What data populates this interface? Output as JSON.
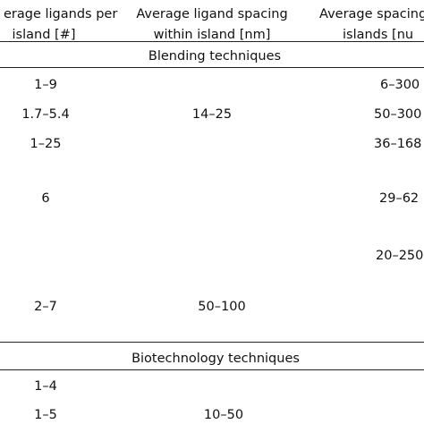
{
  "header": {
    "col1": [
      "erage ligands per",
      "island [#]"
    ],
    "col2": [
      "Average ligand spacing",
      "within island [nm]"
    ],
    "col3": [
      "Average spacing",
      "islands [nu"
    ]
  },
  "sections": [
    {
      "title": "Blending techniques",
      "rows": [
        {
          "col1": "1–9",
          "col2": "",
          "col3": "6–300"
        },
        {
          "col1": "1.7–5.4",
          "col2": "14–25",
          "col3": "50–300"
        },
        {
          "col1": "1–25",
          "col2": "",
          "col3": "36–168"
        },
        {
          "col1": "6",
          "col2": "",
          "col3": "29–62"
        },
        {
          "col1": "",
          "col2": "",
          "col3": "20–250"
        },
        {
          "col1": "2–7",
          "col2": "50–100",
          "col3": ""
        }
      ]
    },
    {
      "title": "Biotechnology techniques",
      "rows": [
        {
          "col1": "1–4",
          "col2": "",
          "col3": ""
        },
        {
          "col1": "1–5",
          "col2": "10–50",
          "col3": ""
        }
      ]
    }
  ]
}
